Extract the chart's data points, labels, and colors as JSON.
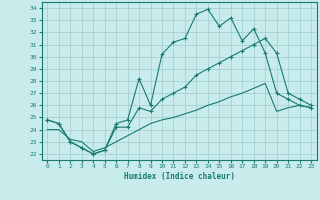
{
  "xlabel": "Humidex (Indice chaleur)",
  "xlim": [
    -0.5,
    23.5
  ],
  "ylim": [
    21.5,
    34.5
  ],
  "xticks": [
    0,
    1,
    2,
    3,
    4,
    5,
    6,
    7,
    8,
    9,
    10,
    11,
    12,
    13,
    14,
    15,
    16,
    17,
    18,
    19,
    20,
    21,
    22,
    23
  ],
  "yticks": [
    22,
    23,
    24,
    25,
    26,
    27,
    28,
    29,
    30,
    31,
    32,
    33,
    34
  ],
  "bg_color": "#c8ecec",
  "grid_color": "#a0cccc",
  "line_color": "#1a7a6e",
  "line1_x": [
    0,
    1,
    2,
    3,
    4,
    5,
    6,
    7,
    8,
    9,
    10,
    11,
    12,
    13,
    14,
    15,
    16,
    17,
    18,
    19,
    20,
    21,
    22,
    23
  ],
  "line1_y": [
    24.8,
    24.5,
    23.0,
    22.5,
    22.0,
    22.3,
    24.5,
    24.8,
    28.2,
    26.0,
    30.2,
    31.2,
    31.5,
    33.5,
    33.9,
    32.5,
    33.2,
    31.3,
    32.3,
    30.3,
    27.0,
    26.5,
    26.0,
    25.8
  ],
  "line2_x": [
    0,
    1,
    2,
    3,
    4,
    5,
    6,
    7,
    8,
    9,
    10,
    11,
    12,
    13,
    14,
    15,
    16,
    17,
    18,
    19,
    20,
    21,
    22,
    23
  ],
  "line2_y": [
    24.8,
    24.5,
    23.0,
    22.5,
    22.0,
    22.3,
    24.2,
    24.2,
    25.8,
    25.5,
    26.5,
    27.0,
    27.5,
    28.5,
    29.0,
    29.5,
    30.0,
    30.5,
    31.0,
    31.5,
    30.3,
    27.0,
    26.5,
    26.0
  ],
  "line3_x": [
    0,
    1,
    2,
    3,
    4,
    5,
    6,
    7,
    8,
    9,
    10,
    11,
    12,
    13,
    14,
    15,
    16,
    17,
    18,
    19,
    20,
    21,
    22,
    23
  ],
  "line3_y": [
    24.0,
    24.0,
    23.2,
    23.0,
    22.2,
    22.5,
    23.0,
    23.5,
    24.0,
    24.5,
    24.8,
    25.0,
    25.3,
    25.6,
    26.0,
    26.3,
    26.7,
    27.0,
    27.4,
    27.8,
    25.5,
    25.8,
    26.0,
    25.8
  ]
}
